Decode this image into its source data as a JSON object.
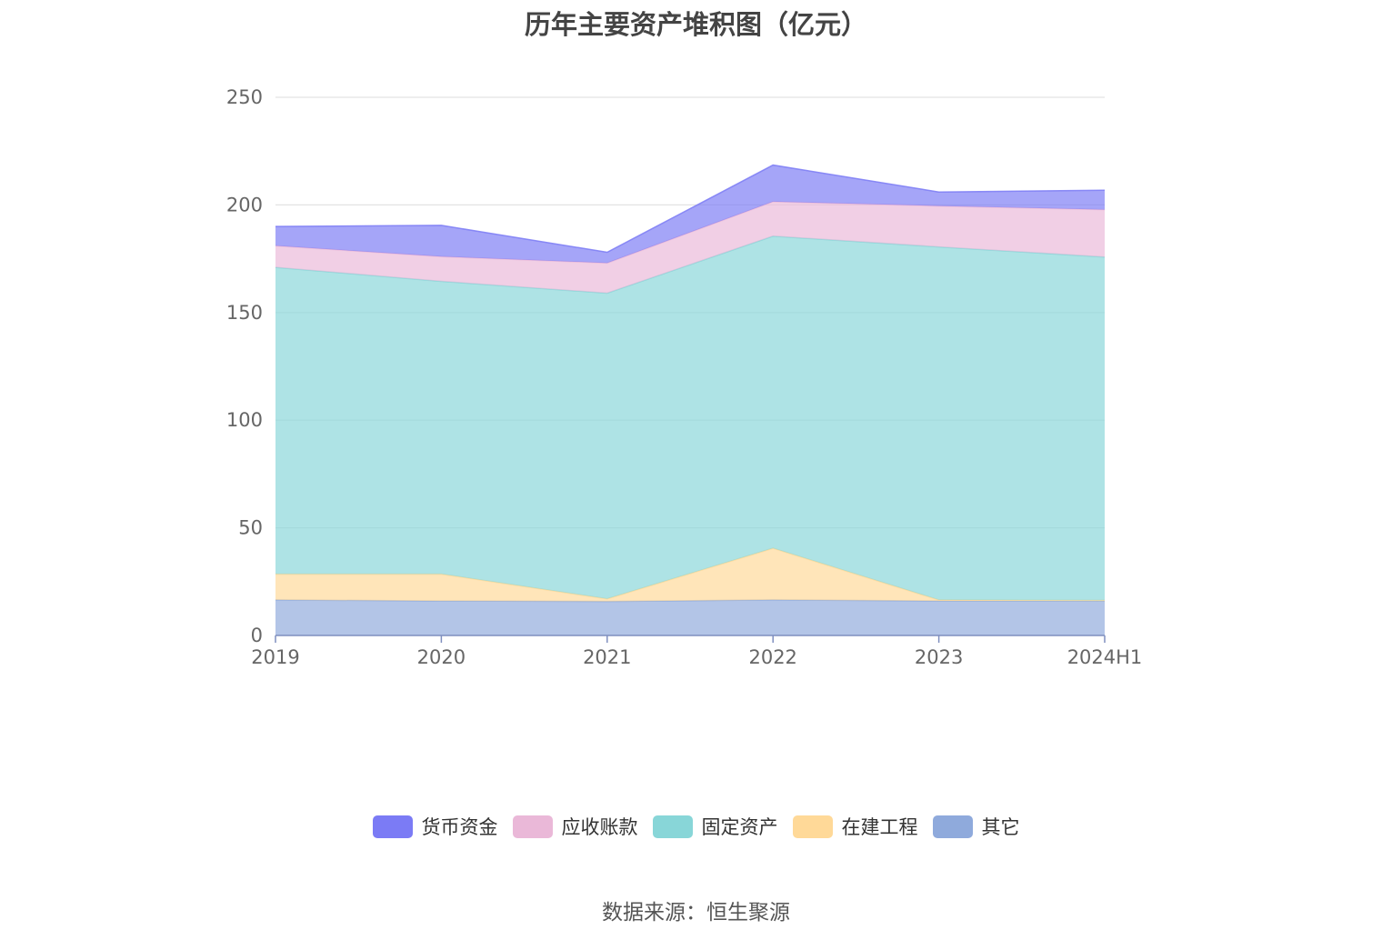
{
  "title": "历年主要资产堆积图（亿元）",
  "source": "数据来源：恒生聚源",
  "chart_data": {
    "type": "area",
    "stacked": true,
    "categories": [
      "2019",
      "2020",
      "2021",
      "2022",
      "2023",
      "2024H1"
    ],
    "ylim": [
      0,
      250
    ],
    "yticks": [
      0,
      50,
      100,
      150,
      200,
      250
    ],
    "grid": true,
    "legend_position": "bottom",
    "series": [
      {
        "name": "其它",
        "color": "#8faadc",
        "values": [
          16.5,
          16.0,
          15.8,
          16.5,
          16.0,
          16.0
        ]
      },
      {
        "name": "在建工程",
        "color": "#ffd998",
        "values": [
          12.0,
          12.5,
          1.2,
          24.0,
          0.5,
          0.3
        ]
      },
      {
        "name": "固定资产",
        "color": "#88d6d8",
        "values": [
          142.5,
          136.0,
          142.0,
          145.0,
          164.0,
          159.5
        ]
      },
      {
        "name": "应收账款",
        "color": "#eab8d8",
        "values": [
          10.0,
          11.5,
          14.0,
          16.0,
          19.0,
          22.0
        ]
      },
      {
        "name": "货币资金",
        "color": "#7b7bf5",
        "values": [
          9.0,
          14.5,
          5.0,
          17.0,
          6.5,
          9.0
        ]
      }
    ],
    "legend_order": [
      "货币资金",
      "应收账款",
      "固定资产",
      "在建工程",
      "其它"
    ]
  }
}
